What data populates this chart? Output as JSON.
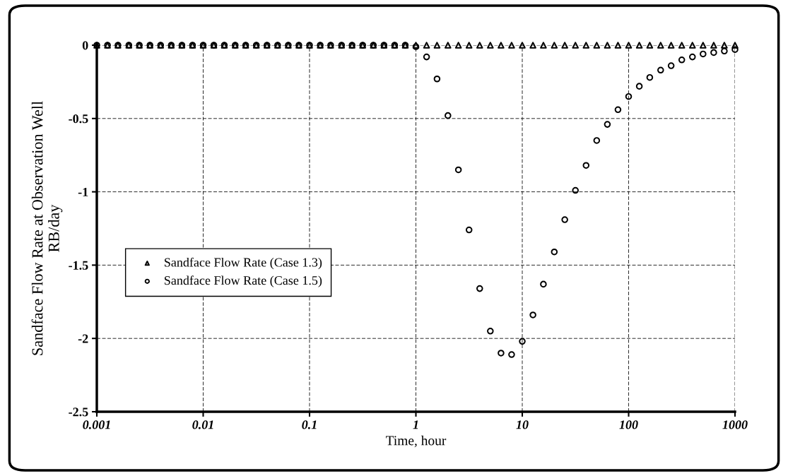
{
  "chart_data": {
    "type": "scatter",
    "xlabel": "Time, hour",
    "ylabel": "Sandface Flow Rate at Observation Well\nRB/day",
    "x": [
      0.001,
      0.00126,
      0.00158,
      0.002,
      0.00251,
      0.00316,
      0.00398,
      0.00501,
      0.00631,
      0.00794,
      0.01,
      0.0126,
      0.0158,
      0.02,
      0.0251,
      0.0316,
      0.0398,
      0.0501,
      0.0631,
      0.0794,
      0.1,
      0.126,
      0.158,
      0.2,
      0.251,
      0.316,
      0.398,
      0.501,
      0.631,
      0.794,
      1,
      1.26,
      1.58,
      2,
      2.51,
      3.16,
      3.98,
      5.01,
      6.31,
      7.94,
      10,
      12.6,
      15.8,
      20,
      25.1,
      31.6,
      39.8,
      50.1,
      63.1,
      79.4,
      100,
      126,
      158,
      200,
      251,
      316,
      398,
      501,
      631,
      794,
      1000
    ],
    "series": [
      {
        "name": "Sandface Flow Rate (Case 1.3)",
        "color": "#000000",
        "marker": "triangle",
        "values": [
          0,
          0,
          0,
          0,
          0,
          0,
          0,
          0,
          0,
          0,
          0,
          0,
          0,
          0,
          0,
          0,
          0,
          0,
          0,
          0,
          0,
          0,
          0,
          0,
          0,
          0,
          0,
          0,
          0,
          0,
          0,
          0,
          0,
          0,
          0,
          0,
          0,
          0,
          0,
          0,
          0,
          0,
          0,
          0,
          0,
          0,
          0,
          0,
          0,
          0,
          0,
          0,
          0,
          0,
          0,
          0,
          0,
          0,
          0,
          0,
          0
        ]
      },
      {
        "name": "Sandface Flow Rate (Case 1.5)",
        "color": "#000000",
        "marker": "circle",
        "values": [
          0,
          0,
          0,
          0,
          0,
          0,
          0,
          0,
          0,
          0,
          0,
          0,
          0,
          0,
          0,
          0,
          0,
          0,
          0,
          0,
          0,
          0,
          0,
          0,
          0,
          0,
          0,
          0,
          0,
          0,
          -0.01,
          -0.08,
          -0.23,
          -0.48,
          -0.85,
          -1.26,
          -1.66,
          -1.95,
          -2.1,
          -2.11,
          -2.02,
          -1.84,
          -1.63,
          -1.41,
          -1.19,
          -0.99,
          -0.82,
          -0.65,
          -0.54,
          -0.44,
          -0.35,
          -0.28,
          -0.22,
          -0.17,
          -0.14,
          -0.1,
          -0.08,
          -0.06,
          -0.05,
          -0.04,
          -0.03
        ]
      }
    ],
    "log": "x",
    "xlim": [
      0.001,
      1000
    ],
    "xticks": [
      0.001,
      0.01,
      0.1,
      1,
      10,
      100,
      1000
    ],
    "ylim": [
      -2.5,
      0
    ],
    "yticks": [
      -2.5,
      -2,
      -1.5,
      -1,
      -0.5,
      0
    ],
    "grid": true,
    "legend": "left"
  }
}
